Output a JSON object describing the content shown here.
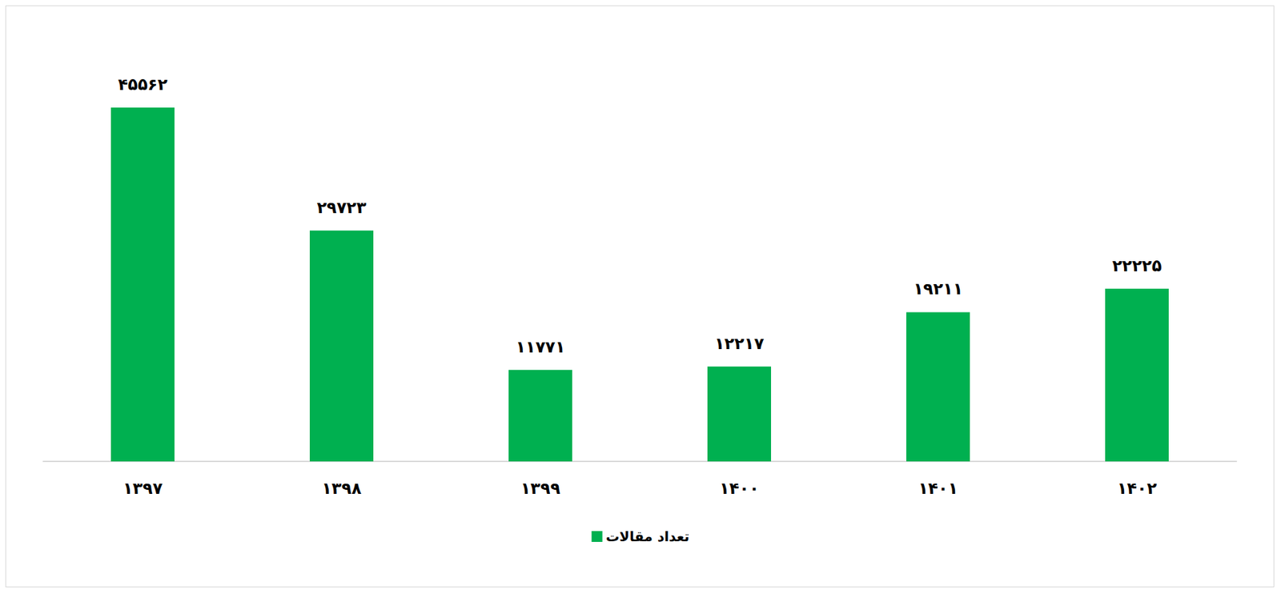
{
  "chart_data": {
    "type": "bar",
    "categories": [
      "۱۳۹۷",
      "۱۳۹۸",
      "۱۳۹۹",
      "۱۴۰۰",
      "۱۴۰۱",
      "۱۴۰۲"
    ],
    "series": [
      {
        "name": "تعداد مقالات",
        "color": "#00b050",
        "values": [
          45562,
          29723,
          11771,
          12217,
          19211,
          22225
        ],
        "value_labels": [
          "۴۵۵۶۲",
          "۲۹۷۲۳",
          "۱۱۷۷۱",
          "۱۲۲۱۷",
          "۱۹۲۱۱",
          "۲۲۲۲۵"
        ]
      }
    ],
    "ylim": [
      0,
      50000
    ],
    "grid": false,
    "legend": "bottom",
    "data_labels": true,
    "tick_labels": "x"
  }
}
